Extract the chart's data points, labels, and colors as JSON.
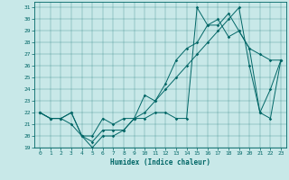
{
  "xlabel": "Humidex (Indice chaleur)",
  "bg_color": "#c8e8e8",
  "line_color": "#006666",
  "xlim": [
    -0.5,
    23.5
  ],
  "ylim": [
    19,
    31.5
  ],
  "yticks": [
    19,
    20,
    21,
    22,
    23,
    24,
    25,
    26,
    27,
    28,
    29,
    30,
    31
  ],
  "xticks": [
    0,
    1,
    2,
    3,
    4,
    5,
    6,
    7,
    8,
    9,
    10,
    11,
    12,
    13,
    14,
    15,
    16,
    17,
    18,
    19,
    20,
    21,
    22,
    23
  ],
  "line1_x": [
    0,
    1,
    2,
    3,
    4,
    5,
    6,
    7,
    8,
    9,
    10,
    11,
    12,
    13,
    14,
    15,
    16,
    17,
    18,
    19,
    20,
    21,
    22,
    23
  ],
  "line1_y": [
    22,
    21.5,
    21.5,
    21,
    20,
    19,
    20,
    20,
    20.5,
    21.5,
    21.5,
    22,
    22,
    21.5,
    21.5,
    31,
    29.5,
    29.5,
    30.5,
    29,
    27.5,
    22,
    21.5,
    26.5
  ],
  "line2_x": [
    0,
    1,
    2,
    3,
    4,
    5,
    6,
    7,
    8,
    9,
    10,
    11,
    12,
    13,
    14,
    15,
    16,
    17,
    18,
    19,
    20,
    21,
    22,
    23
  ],
  "line2_y": [
    22,
    21.5,
    21.5,
    22,
    20,
    20,
    21.5,
    21,
    21.5,
    21.5,
    23.5,
    23,
    24.5,
    26.5,
    27.5,
    28,
    29.5,
    30,
    28.5,
    29,
    27.5,
    27,
    26.5,
    26.5
  ],
  "line3_x": [
    0,
    1,
    2,
    3,
    4,
    5,
    6,
    7,
    8,
    9,
    10,
    11,
    12,
    13,
    14,
    15,
    16,
    17,
    18,
    19,
    20,
    21,
    22,
    23
  ],
  "line3_y": [
    22,
    21.5,
    21.5,
    22,
    20,
    19.5,
    20.5,
    20.5,
    20.5,
    21.5,
    22,
    23,
    24,
    25,
    26,
    27,
    28,
    29,
    30,
    31,
    26,
    22,
    24,
    26.5
  ]
}
